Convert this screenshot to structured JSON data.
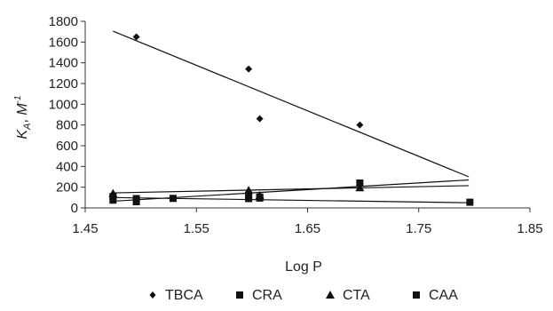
{
  "chart_data": {
    "type": "scatter",
    "xlabel": "Log P",
    "ylabel": {
      "main": "K",
      "sub": "A",
      "unit": "M",
      "sup": "-1"
    },
    "xlim": [
      1.45,
      1.85
    ],
    "ylim": [
      0,
      1800
    ],
    "xticks": [
      "1.45",
      "1.55",
      "1.65",
      "1.75",
      "1.85"
    ],
    "yticks": [
      "0",
      "200",
      "400",
      "600",
      "800",
      "1000",
      "1200",
      "1400",
      "1600",
      "1800"
    ],
    "grid": false,
    "legend_position": "bottom",
    "series": [
      {
        "name": "TBCA",
        "marker": "diamond",
        "points": [
          [
            1.496,
            1650
          ],
          [
            1.597,
            1340
          ],
          [
            1.607,
            860
          ],
          [
            1.697,
            800
          ]
        ],
        "trendline": [
          [
            1.475,
            1705
          ],
          [
            1.795,
            300
          ]
        ]
      },
      {
        "name": "CRA",
        "marker": "square",
        "points": [
          [
            1.475,
            110
          ],
          [
            1.496,
            90
          ],
          [
            1.529,
            92
          ],
          [
            1.597,
            120
          ],
          [
            1.607,
            105
          ],
          [
            1.796,
            55
          ]
        ],
        "trendline": [
          [
            1.475,
            100
          ],
          [
            1.795,
            50
          ]
        ]
      },
      {
        "name": "CTA",
        "marker": "triangle",
        "points": [
          [
            1.475,
            140
          ],
          [
            1.597,
            170
          ],
          [
            1.607,
            120
          ],
          [
            1.697,
            195
          ]
        ],
        "trendline": [
          [
            1.475,
            145
          ],
          [
            1.795,
            215
          ]
        ]
      },
      {
        "name": "CAA",
        "marker": "square",
        "points": [
          [
            1.475,
            75
          ],
          [
            1.496,
            60
          ],
          [
            1.597,
            90
          ],
          [
            1.607,
            95
          ],
          [
            1.697,
            240
          ]
        ],
        "trendline": [
          [
            1.475,
            65
          ],
          [
            1.795,
            270
          ]
        ]
      }
    ]
  }
}
